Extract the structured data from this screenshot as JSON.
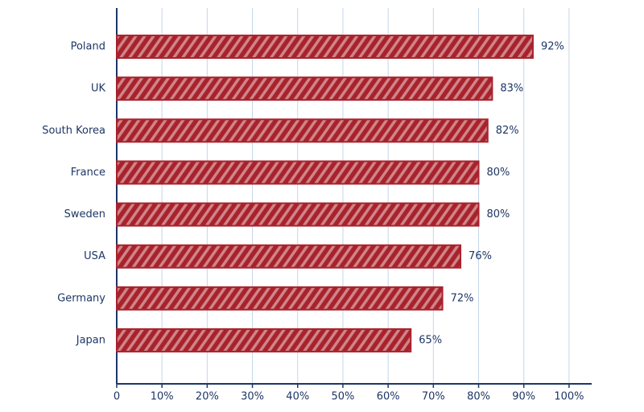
{
  "chart_data": {
    "type": "bar",
    "orientation": "horizontal",
    "categories": [
      "Poland",
      "UK",
      "South Korea",
      "France",
      "Sweden",
      "USA",
      "Germany",
      "Japan"
    ],
    "values": [
      92,
      83,
      82,
      80,
      80,
      76,
      72,
      65
    ],
    "value_labels": [
      "92%",
      "83%",
      "82%",
      "80%",
      "80%",
      "76%",
      "72%",
      "65%"
    ],
    "color": "#a8222c",
    "xlim": [
      0,
      105
    ],
    "xticks": [
      0,
      {
        "value": 10,
        "label": "10%"
      },
      {
        "value": 20,
        "label": "20%"
      },
      {
        "value": 30,
        "label": "30%"
      },
      {
        "value": 40,
        "label": "40%"
      },
      {
        "value": 50,
        "label": "50%"
      },
      {
        "value": 60,
        "label": "60%"
      },
      {
        "value": 70,
        "label": "70%"
      },
      {
        "value": 80,
        "label": "80%"
      },
      {
        "value": 90,
        "label": "90%"
      },
      {
        "value": 100,
        "label": "100%"
      }
    ],
    "grid": true
  }
}
